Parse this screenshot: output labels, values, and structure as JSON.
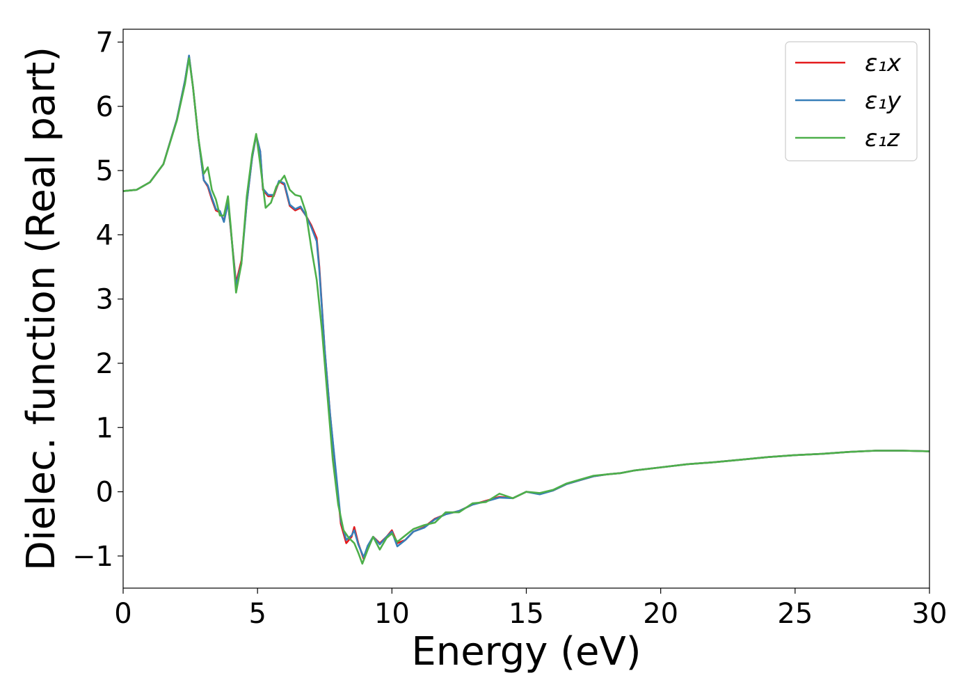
{
  "chart_data": {
    "type": "line",
    "title": "",
    "xlabel": "Energy (eV)",
    "ylabel": "Dielec. function (Real part)",
    "xlim": [
      0,
      30
    ],
    "ylim": [
      -1.5,
      7.2
    ],
    "xticks": [
      0,
      5,
      10,
      15,
      20,
      25,
      30
    ],
    "yticks": [
      -1,
      0,
      1,
      2,
      3,
      4,
      5,
      6,
      7
    ],
    "ytick_labels": [
      "−1",
      "0",
      "1",
      "2",
      "3",
      "4",
      "5",
      "6",
      "7"
    ],
    "grid": false,
    "legend": {
      "position": "top-right"
    },
    "series": [
      {
        "name": "ε₁x",
        "color": "#e41a1c",
        "points": [
          [
            0,
            4.68
          ],
          [
            0.5,
            4.7
          ],
          [
            1.0,
            4.82
          ],
          [
            1.5,
            5.1
          ],
          [
            2.0,
            5.8
          ],
          [
            2.3,
            6.4
          ],
          [
            2.45,
            6.78
          ],
          [
            2.6,
            6.3
          ],
          [
            2.8,
            5.5
          ],
          [
            3.0,
            4.85
          ],
          [
            3.15,
            4.75
          ],
          [
            3.3,
            4.55
          ],
          [
            3.45,
            4.38
          ],
          [
            3.6,
            4.35
          ],
          [
            3.75,
            4.22
          ],
          [
            3.9,
            4.5
          ],
          [
            4.0,
            4.1
          ],
          [
            4.2,
            3.25
          ],
          [
            4.4,
            3.6
          ],
          [
            4.6,
            4.5
          ],
          [
            4.8,
            5.2
          ],
          [
            4.95,
            5.55
          ],
          [
            5.1,
            5.3
          ],
          [
            5.2,
            4.7
          ],
          [
            5.4,
            4.6
          ],
          [
            5.6,
            4.6
          ],
          [
            5.8,
            4.83
          ],
          [
            6.0,
            4.78
          ],
          [
            6.2,
            4.45
          ],
          [
            6.4,
            4.38
          ],
          [
            6.6,
            4.42
          ],
          [
            6.8,
            4.3
          ],
          [
            7.0,
            4.15
          ],
          [
            7.2,
            3.95
          ],
          [
            7.3,
            3.5
          ],
          [
            7.5,
            2.2
          ],
          [
            7.7,
            1.2
          ],
          [
            7.9,
            0.35
          ],
          [
            8.1,
            -0.5
          ],
          [
            8.3,
            -0.8
          ],
          [
            8.5,
            -0.7
          ],
          [
            8.6,
            -0.55
          ],
          [
            8.75,
            -0.8
          ],
          [
            8.95,
            -1.05
          ],
          [
            9.1,
            -0.85
          ],
          [
            9.3,
            -0.7
          ],
          [
            9.55,
            -0.8
          ],
          [
            9.8,
            -0.7
          ],
          [
            10.0,
            -0.6
          ],
          [
            10.2,
            -0.8
          ],
          [
            10.5,
            -0.75
          ],
          [
            10.8,
            -0.62
          ],
          [
            11.2,
            -0.55
          ],
          [
            11.6,
            -0.42
          ],
          [
            12.0,
            -0.35
          ],
          [
            12.5,
            -0.3
          ],
          [
            13.0,
            -0.2
          ],
          [
            13.5,
            -0.14
          ],
          [
            14.0,
            -0.08
          ],
          [
            14.5,
            -0.1
          ],
          [
            15.0,
            0.0
          ],
          [
            15.5,
            -0.03
          ],
          [
            16.0,
            0.02
          ],
          [
            16.5,
            0.12
          ],
          [
            17.0,
            0.18
          ],
          [
            17.5,
            0.24
          ],
          [
            18.0,
            0.27
          ],
          [
            18.5,
            0.29
          ],
          [
            19.0,
            0.33
          ],
          [
            20.0,
            0.38
          ],
          [
            21.0,
            0.43
          ],
          [
            22.0,
            0.46
          ],
          [
            23.0,
            0.5
          ],
          [
            24.0,
            0.54
          ],
          [
            25.0,
            0.57
          ],
          [
            26.0,
            0.59
          ],
          [
            27.0,
            0.62
          ],
          [
            28.0,
            0.64
          ],
          [
            29.0,
            0.64
          ],
          [
            30.0,
            0.63
          ]
        ]
      },
      {
        "name": "ε₁y",
        "color": "#377eb8",
        "points": [
          [
            0,
            4.68
          ],
          [
            0.5,
            4.7
          ],
          [
            1.0,
            4.82
          ],
          [
            1.5,
            5.1
          ],
          [
            2.0,
            5.8
          ],
          [
            2.3,
            6.4
          ],
          [
            2.45,
            6.79
          ],
          [
            2.6,
            6.3
          ],
          [
            2.8,
            5.5
          ],
          [
            3.0,
            4.85
          ],
          [
            3.15,
            4.77
          ],
          [
            3.3,
            4.58
          ],
          [
            3.45,
            4.4
          ],
          [
            3.6,
            4.37
          ],
          [
            3.75,
            4.2
          ],
          [
            3.9,
            4.5
          ],
          [
            4.0,
            4.12
          ],
          [
            4.2,
            3.2
          ],
          [
            4.4,
            3.55
          ],
          [
            4.6,
            4.5
          ],
          [
            4.8,
            5.2
          ],
          [
            4.95,
            5.55
          ],
          [
            5.1,
            5.3
          ],
          [
            5.2,
            4.72
          ],
          [
            5.4,
            4.62
          ],
          [
            5.6,
            4.62
          ],
          [
            5.8,
            4.84
          ],
          [
            6.0,
            4.8
          ],
          [
            6.2,
            4.47
          ],
          [
            6.4,
            4.4
          ],
          [
            6.6,
            4.44
          ],
          [
            6.8,
            4.3
          ],
          [
            7.0,
            4.12
          ],
          [
            7.2,
            3.9
          ],
          [
            7.3,
            3.45
          ],
          [
            7.5,
            2.2
          ],
          [
            7.7,
            1.2
          ],
          [
            7.9,
            0.38
          ],
          [
            8.1,
            -0.45
          ],
          [
            8.3,
            -0.75
          ],
          [
            8.5,
            -0.68
          ],
          [
            8.6,
            -0.6
          ],
          [
            8.75,
            -0.82
          ],
          [
            8.95,
            -1.02
          ],
          [
            9.1,
            -0.84
          ],
          [
            9.3,
            -0.7
          ],
          [
            9.55,
            -0.82
          ],
          [
            9.8,
            -0.7
          ],
          [
            10.0,
            -0.62
          ],
          [
            10.2,
            -0.85
          ],
          [
            10.5,
            -0.75
          ],
          [
            10.8,
            -0.62
          ],
          [
            11.2,
            -0.56
          ],
          [
            11.6,
            -0.43
          ],
          [
            12.0,
            -0.35
          ],
          [
            12.5,
            -0.3
          ],
          [
            13.0,
            -0.2
          ],
          [
            13.5,
            -0.15
          ],
          [
            14.0,
            -0.09
          ],
          [
            14.5,
            -0.1
          ],
          [
            15.0,
            0.0
          ],
          [
            15.5,
            -0.04
          ],
          [
            16.0,
            0.02
          ],
          [
            16.5,
            0.12
          ],
          [
            17.0,
            0.18
          ],
          [
            17.5,
            0.24
          ],
          [
            18.0,
            0.27
          ],
          [
            18.5,
            0.29
          ],
          [
            19.0,
            0.33
          ],
          [
            20.0,
            0.38
          ],
          [
            21.0,
            0.43
          ],
          [
            22.0,
            0.46
          ],
          [
            23.0,
            0.5
          ],
          [
            24.0,
            0.54
          ],
          [
            25.0,
            0.57
          ],
          [
            26.0,
            0.59
          ],
          [
            27.0,
            0.62
          ],
          [
            28.0,
            0.64
          ],
          [
            29.0,
            0.64
          ],
          [
            30.0,
            0.63
          ]
        ]
      },
      {
        "name": "ε₁z",
        "color": "#4daf4a",
        "points": [
          [
            0,
            4.68
          ],
          [
            0.5,
            4.7
          ],
          [
            1.0,
            4.82
          ],
          [
            1.5,
            5.1
          ],
          [
            2.0,
            5.78
          ],
          [
            2.3,
            6.35
          ],
          [
            2.45,
            6.75
          ],
          [
            2.6,
            6.3
          ],
          [
            2.8,
            5.5
          ],
          [
            3.0,
            4.95
          ],
          [
            3.15,
            5.05
          ],
          [
            3.3,
            4.7
          ],
          [
            3.45,
            4.55
          ],
          [
            3.6,
            4.3
          ],
          [
            3.75,
            4.3
          ],
          [
            3.9,
            4.6
          ],
          [
            4.0,
            4.15
          ],
          [
            4.2,
            3.1
          ],
          [
            4.4,
            3.55
          ],
          [
            4.6,
            4.6
          ],
          [
            4.8,
            5.25
          ],
          [
            4.95,
            5.57
          ],
          [
            5.1,
            5.1
          ],
          [
            5.3,
            4.42
          ],
          [
            5.5,
            4.5
          ],
          [
            5.7,
            4.75
          ],
          [
            6.0,
            4.92
          ],
          [
            6.2,
            4.7
          ],
          [
            6.4,
            4.62
          ],
          [
            6.6,
            4.6
          ],
          [
            6.8,
            4.35
          ],
          [
            7.0,
            3.8
          ],
          [
            7.2,
            3.3
          ],
          [
            7.4,
            2.5
          ],
          [
            7.6,
            1.5
          ],
          [
            7.8,
            0.5
          ],
          [
            8.0,
            -0.2
          ],
          [
            8.2,
            -0.6
          ],
          [
            8.4,
            -0.72
          ],
          [
            8.6,
            -0.8
          ],
          [
            8.75,
            -0.95
          ],
          [
            8.9,
            -1.12
          ],
          [
            9.1,
            -0.9
          ],
          [
            9.3,
            -0.7
          ],
          [
            9.55,
            -0.9
          ],
          [
            9.8,
            -0.72
          ],
          [
            10.0,
            -0.65
          ],
          [
            10.2,
            -0.78
          ],
          [
            10.5,
            -0.68
          ],
          [
            10.8,
            -0.58
          ],
          [
            11.2,
            -0.52
          ],
          [
            11.6,
            -0.48
          ],
          [
            12.0,
            -0.32
          ],
          [
            12.5,
            -0.32
          ],
          [
            13.0,
            -0.18
          ],
          [
            13.5,
            -0.16
          ],
          [
            14.0,
            -0.03
          ],
          [
            14.5,
            -0.1
          ],
          [
            15.0,
            0.0
          ],
          [
            15.5,
            -0.02
          ],
          [
            16.0,
            0.03
          ],
          [
            16.5,
            0.13
          ],
          [
            17.0,
            0.19
          ],
          [
            17.5,
            0.25
          ],
          [
            18.0,
            0.27
          ],
          [
            18.5,
            0.29
          ],
          [
            19.0,
            0.33
          ],
          [
            20.0,
            0.38
          ],
          [
            21.0,
            0.43
          ],
          [
            22.0,
            0.46
          ],
          [
            23.0,
            0.5
          ],
          [
            24.0,
            0.54
          ],
          [
            25.0,
            0.57
          ],
          [
            26.0,
            0.59
          ],
          [
            27.0,
            0.62
          ],
          [
            28.0,
            0.64
          ],
          [
            29.0,
            0.64
          ],
          [
            30.0,
            0.63
          ]
        ]
      }
    ]
  }
}
